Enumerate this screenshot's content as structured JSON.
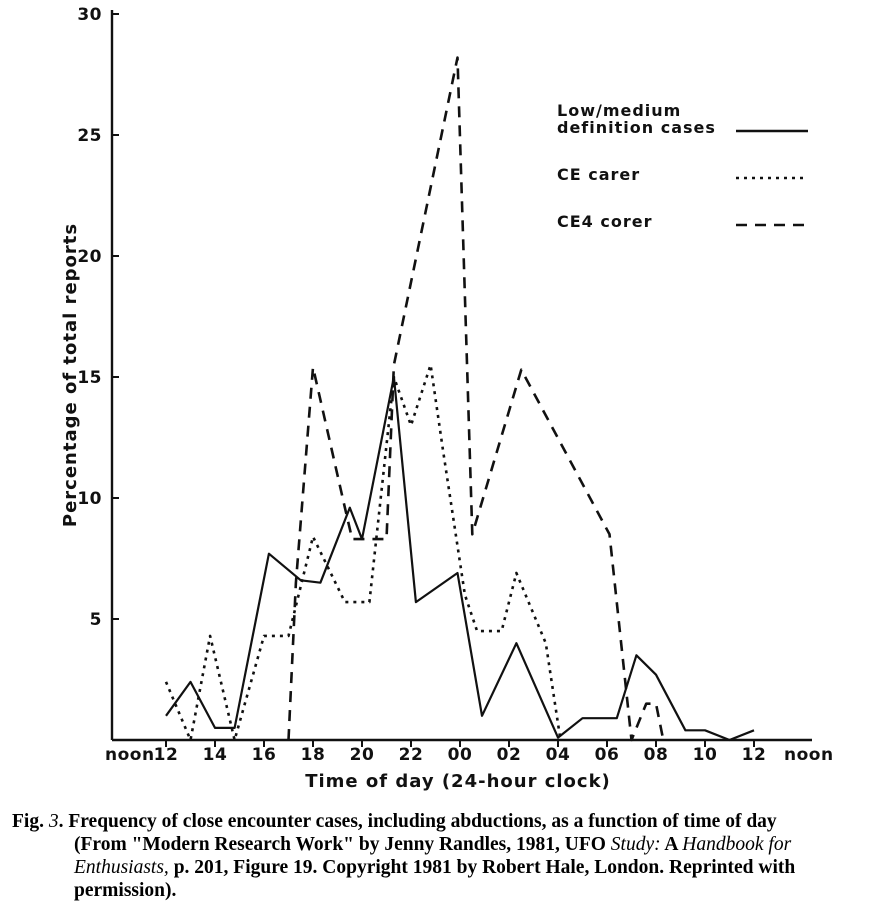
{
  "chart_data": {
    "type": "line",
    "xlabel": "Time of day (24-hour clock)",
    "ylabel": "Percentage of total reports",
    "ylim": [
      0,
      30
    ],
    "yticks": [
      5,
      10,
      15,
      20,
      25,
      30
    ],
    "xlim": [
      11.5,
      36.6
    ],
    "xticks": [
      {
        "x": 12,
        "label": "12"
      },
      {
        "x": 14,
        "label": "14"
      },
      {
        "x": 16,
        "label": "16"
      },
      {
        "x": 18,
        "label": "18"
      },
      {
        "x": 20,
        "label": "20"
      },
      {
        "x": 22,
        "label": "22"
      },
      {
        "x": 24,
        "label": "00"
      },
      {
        "x": 26,
        "label": "02"
      },
      {
        "x": 28,
        "label": "04"
      },
      {
        "x": 30,
        "label": "06"
      },
      {
        "x": 32,
        "label": "08"
      },
      {
        "x": 34,
        "label": "10"
      },
      {
        "x": 36,
        "label": "12"
      }
    ],
    "x_end_labels": {
      "left": "noon",
      "right": "noon"
    },
    "legend_position": "top-right",
    "series": [
      {
        "name": "Low/medium definition cases",
        "legend_lines": [
          "Low/medium",
          "definition cases"
        ],
        "style": "solid",
        "points": [
          [
            12,
            1.0
          ],
          [
            13,
            2.4
          ],
          [
            14,
            0.5
          ],
          [
            14.8,
            0.5
          ],
          [
            16.2,
            7.7
          ],
          [
            17.5,
            6.6
          ],
          [
            18.3,
            6.5
          ],
          [
            19.5,
            9.6
          ],
          [
            20,
            8.3
          ],
          [
            21.3,
            15.0
          ],
          [
            22.2,
            5.7
          ],
          [
            23.9,
            6.9
          ],
          [
            24.9,
            1.0
          ],
          [
            26.3,
            4.0
          ],
          [
            28,
            0.1
          ],
          [
            29,
            0.9
          ],
          [
            30.4,
            0.9
          ],
          [
            31.2,
            3.5
          ],
          [
            32,
            2.7
          ],
          [
            33.2,
            0.4
          ],
          [
            34,
            0.4
          ],
          [
            35,
            0.0
          ],
          [
            36,
            0.4
          ]
        ]
      },
      {
        "name": "CE carer",
        "legend_lines": [
          "CE carer"
        ],
        "style": "dotted",
        "points": [
          [
            12,
            2.4
          ],
          [
            13,
            0.0
          ],
          [
            13.8,
            4.3
          ],
          [
            14.8,
            0.0
          ],
          [
            16,
            4.3
          ],
          [
            17,
            4.3
          ],
          [
            18,
            8.4
          ],
          [
            19.3,
            5.7
          ],
          [
            20.3,
            5.7
          ],
          [
            21.3,
            15.0
          ],
          [
            22,
            13.0
          ],
          [
            22.8,
            15.5
          ],
          [
            23.3,
            12.0
          ],
          [
            24.2,
            6.0
          ],
          [
            24.7,
            4.5
          ],
          [
            25.7,
            4.5
          ],
          [
            26.3,
            6.9
          ],
          [
            27.5,
            4.0
          ],
          [
            28.1,
            0.0
          ]
        ]
      },
      {
        "name": "CE4 corer",
        "legend_lines": [
          "CE4 corer"
        ],
        "style": "dashed",
        "points": [
          [
            17,
            0.0
          ],
          [
            17.3,
            6.5
          ],
          [
            18,
            15.4
          ],
          [
            19.3,
            9.6
          ],
          [
            19.6,
            8.3
          ],
          [
            20.3,
            8.3
          ],
          [
            21,
            8.3
          ],
          [
            21.3,
            15.5
          ],
          [
            23.9,
            28.2
          ],
          [
            24.5,
            8.5
          ],
          [
            26.5,
            15.3
          ],
          [
            30.1,
            8.5
          ],
          [
            31,
            0.0
          ],
          [
            31.6,
            1.5
          ],
          [
            32,
            1.5
          ],
          [
            32.3,
            0.0
          ]
        ]
      }
    ]
  },
  "caption": {
    "fig": "Fig.",
    "num": "3",
    "text1": ". Frequency of close encounter cases, including abductions, as a function of time of day",
    "text2": "(From \"Modern Research Work\" by Jenny Randles, 1981, UFO ",
    "study": "Study:",
    "a": " A ",
    "handbook": "Handbook for",
    "enthusiasts": "Enthusiasts,",
    "text3": " p. 201, Figure 19. Copyright 1981 by Robert Hale, London. Reprinted",
    "text4": "with permission)."
  }
}
